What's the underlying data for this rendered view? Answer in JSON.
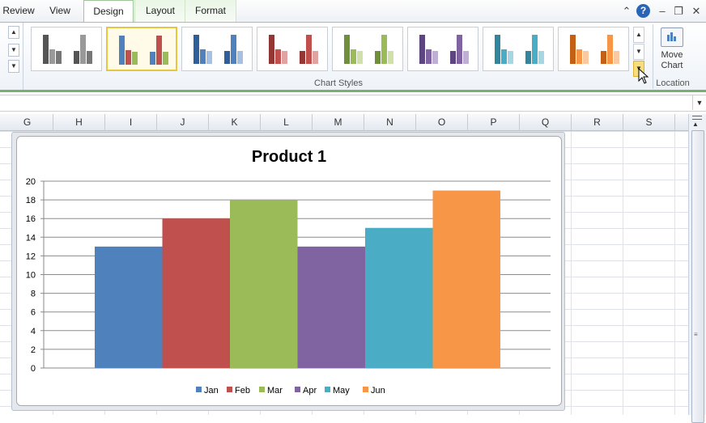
{
  "ribbon": {
    "tabs": [
      {
        "label": "Review",
        "active": false
      },
      {
        "label": "View",
        "active": false
      },
      {
        "label": "Design",
        "active": true
      },
      {
        "label": "Layout",
        "active": false
      },
      {
        "label": "Format",
        "active": false
      }
    ],
    "help_icon": "?",
    "gallery_group_label": "Chart Styles",
    "location_group_label": "Location",
    "move_chart_label": "Move Chart",
    "styles": [
      {
        "name": "gray",
        "colors": [
          "#555555",
          "#999999",
          "#777777"
        ],
        "selected": false
      },
      {
        "name": "multicolor",
        "colors": [
          "#4f81bd",
          "#c0504d",
          "#9bbb59"
        ],
        "selected": true
      },
      {
        "name": "blue",
        "colors": [
          "#2f5f9a",
          "#4f81bd",
          "#a7bfe0"
        ],
        "selected": false
      },
      {
        "name": "red",
        "colors": [
          "#943634",
          "#c0504d",
          "#e0a3a2"
        ],
        "selected": false
      },
      {
        "name": "green",
        "colors": [
          "#6f8f3b",
          "#9bbb59",
          "#cfe0a8"
        ],
        "selected": false
      },
      {
        "name": "purple",
        "colors": [
          "#5d4580",
          "#8064a2",
          "#bfb0d3"
        ],
        "selected": false
      },
      {
        "name": "teal",
        "colors": [
          "#31859c",
          "#4bacc6",
          "#a6d5e3"
        ],
        "selected": false
      },
      {
        "name": "orange",
        "colors": [
          "#c46016",
          "#f79646",
          "#fbc9a1"
        ],
        "selected": false
      }
    ]
  },
  "sheet": {
    "columns": [
      "G",
      "H",
      "I",
      "J",
      "K",
      "L",
      "M",
      "N",
      "O",
      "P",
      "Q",
      "R",
      "S"
    ]
  },
  "chart_data": {
    "type": "bar",
    "title": "Product 1",
    "categories": [
      "Jan",
      "Feb",
      "Mar",
      "Apr",
      "May",
      "Jun"
    ],
    "values": [
      13,
      16,
      18,
      13,
      15,
      19
    ],
    "colors": [
      "#4f81bd",
      "#c0504d",
      "#9bbb59",
      "#8064a2",
      "#4bacc6",
      "#f79646"
    ],
    "ylim": [
      0,
      20
    ],
    "yticks": [
      0,
      2,
      4,
      6,
      8,
      10,
      12,
      14,
      16,
      18,
      20
    ],
    "grid": true,
    "legend_position": "bottom",
    "xlabel": "",
    "ylabel": ""
  }
}
